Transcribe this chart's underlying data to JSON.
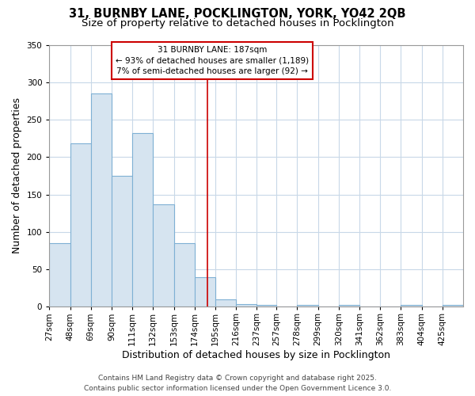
{
  "title_line1": "31, BURNBY LANE, POCKLINGTON, YORK, YO42 2QB",
  "title_line2": "Size of property relative to detached houses in Pocklington",
  "xlabel": "Distribution of detached houses by size in Pocklington",
  "ylabel": "Number of detached properties",
  "bar_edges": [
    27,
    48,
    69,
    90,
    111,
    132,
    153,
    174,
    195,
    216,
    237,
    257,
    278,
    299,
    320,
    341,
    362,
    383,
    404,
    425,
    446
  ],
  "bar_heights": [
    85,
    218,
    285,
    175,
    232,
    137,
    85,
    40,
    10,
    4,
    3,
    0,
    3,
    0,
    3,
    0,
    0,
    2,
    0,
    2
  ],
  "bar_color": "#d6e4f0",
  "bar_edgecolor": "#7eb0d4",
  "grid_color": "#c8d8e8",
  "bg_color": "#ffffff",
  "vline_x": 187,
  "vline_color": "#cc0000",
  "annotation_text": "31 BURNBY LANE: 187sqm\n← 93% of detached houses are smaller (1,189)\n7% of semi-detached houses are larger (92) →",
  "annotation_box_color": "#cc0000",
  "ylim": [
    0,
    350
  ],
  "yticks": [
    0,
    50,
    100,
    150,
    200,
    250,
    300,
    350
  ],
  "footer_line1": "Contains HM Land Registry data © Crown copyright and database right 2025.",
  "footer_line2": "Contains public sector information licensed under the Open Government Licence 3.0.",
  "title_fontsize": 10.5,
  "subtitle_fontsize": 9.5,
  "label_fontsize": 9,
  "tick_fontsize": 7.5,
  "footer_fontsize": 6.5,
  "annotation_fontsize": 7.5
}
